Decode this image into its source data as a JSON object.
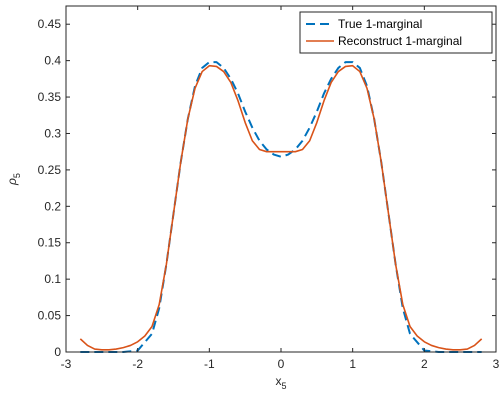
{
  "chart_data": {
    "type": "line",
    "xlabel": "x",
    "xlabel_sub": "5",
    "ylabel": "ρ",
    "ylabel_sub": "5",
    "xlim": [
      -3,
      3
    ],
    "ylim": [
      0,
      0.475
    ],
    "xticks": [
      -3,
      -2,
      -1,
      0,
      1,
      2,
      3
    ],
    "xtick_labels": [
      "-3",
      "-2",
      "-1",
      "0",
      "1",
      "2",
      "3"
    ],
    "yticks": [
      0,
      0.05,
      0.1,
      0.15,
      0.2,
      0.25,
      0.3,
      0.35,
      0.4,
      0.45
    ],
    "ytick_labels": [
      "0",
      "0.05",
      "0.1",
      "0.15",
      "0.2",
      "0.25",
      "0.3",
      "0.35",
      "0.4",
      "0.45"
    ],
    "grid": false,
    "legend": "top-right",
    "series": [
      {
        "name": "True 1-marginal",
        "color": "#0072BD",
        "style": "dashed",
        "x": [
          -2.8,
          -2.6,
          -2.4,
          -2.2,
          -2.0,
          -1.8,
          -1.7,
          -1.6,
          -1.5,
          -1.4,
          -1.3,
          -1.2,
          -1.1,
          -1.0,
          -0.9,
          -0.8,
          -0.7,
          -0.6,
          -0.5,
          -0.4,
          -0.3,
          -0.2,
          -0.1,
          0.0,
          0.1,
          0.2,
          0.3,
          0.4,
          0.5,
          0.6,
          0.7,
          0.8,
          0.9,
          1.0,
          1.1,
          1.2,
          1.3,
          1.4,
          1.5,
          1.6,
          1.7,
          1.8,
          2.0,
          2.2,
          2.4,
          2.6,
          2.8
        ],
        "y": [
          0.0,
          0.0,
          0.0,
          0.0,
          0.002,
          0.025,
          0.06,
          0.12,
          0.19,
          0.26,
          0.32,
          0.365,
          0.39,
          0.398,
          0.398,
          0.39,
          0.375,
          0.355,
          0.33,
          0.308,
          0.29,
          0.278,
          0.271,
          0.268,
          0.271,
          0.278,
          0.29,
          0.308,
          0.33,
          0.355,
          0.375,
          0.39,
          0.398,
          0.398,
          0.39,
          0.365,
          0.32,
          0.26,
          0.19,
          0.12,
          0.06,
          0.025,
          0.002,
          0.0,
          0.0,
          0.0,
          0.0
        ]
      },
      {
        "name": "Reconstruct 1-marginal",
        "color": "#D95319",
        "style": "solid",
        "x": [
          -2.8,
          -2.7,
          -2.6,
          -2.5,
          -2.4,
          -2.3,
          -2.2,
          -2.1,
          -2.0,
          -1.9,
          -1.8,
          -1.7,
          -1.6,
          -1.5,
          -1.4,
          -1.3,
          -1.2,
          -1.1,
          -1.0,
          -0.9,
          -0.8,
          -0.7,
          -0.6,
          -0.5,
          -0.4,
          -0.3,
          -0.2,
          -0.1,
          0.0,
          0.1,
          0.2,
          0.3,
          0.4,
          0.5,
          0.6,
          0.7,
          0.8,
          0.9,
          1.0,
          1.1,
          1.2,
          1.3,
          1.4,
          1.5,
          1.6,
          1.7,
          1.8,
          1.9,
          2.0,
          2.1,
          2.2,
          2.3,
          2.4,
          2.5,
          2.6,
          2.7,
          2.8
        ],
        "y": [
          0.018,
          0.009,
          0.004,
          0.003,
          0.003,
          0.004,
          0.006,
          0.009,
          0.014,
          0.022,
          0.035,
          0.065,
          0.12,
          0.19,
          0.26,
          0.32,
          0.362,
          0.385,
          0.393,
          0.392,
          0.385,
          0.37,
          0.345,
          0.315,
          0.29,
          0.278,
          0.275,
          0.275,
          0.275,
          0.275,
          0.275,
          0.278,
          0.29,
          0.315,
          0.345,
          0.37,
          0.385,
          0.392,
          0.393,
          0.385,
          0.362,
          0.32,
          0.26,
          0.19,
          0.12,
          0.065,
          0.035,
          0.022,
          0.014,
          0.009,
          0.006,
          0.004,
          0.003,
          0.003,
          0.004,
          0.009,
          0.018
        ]
      }
    ]
  }
}
